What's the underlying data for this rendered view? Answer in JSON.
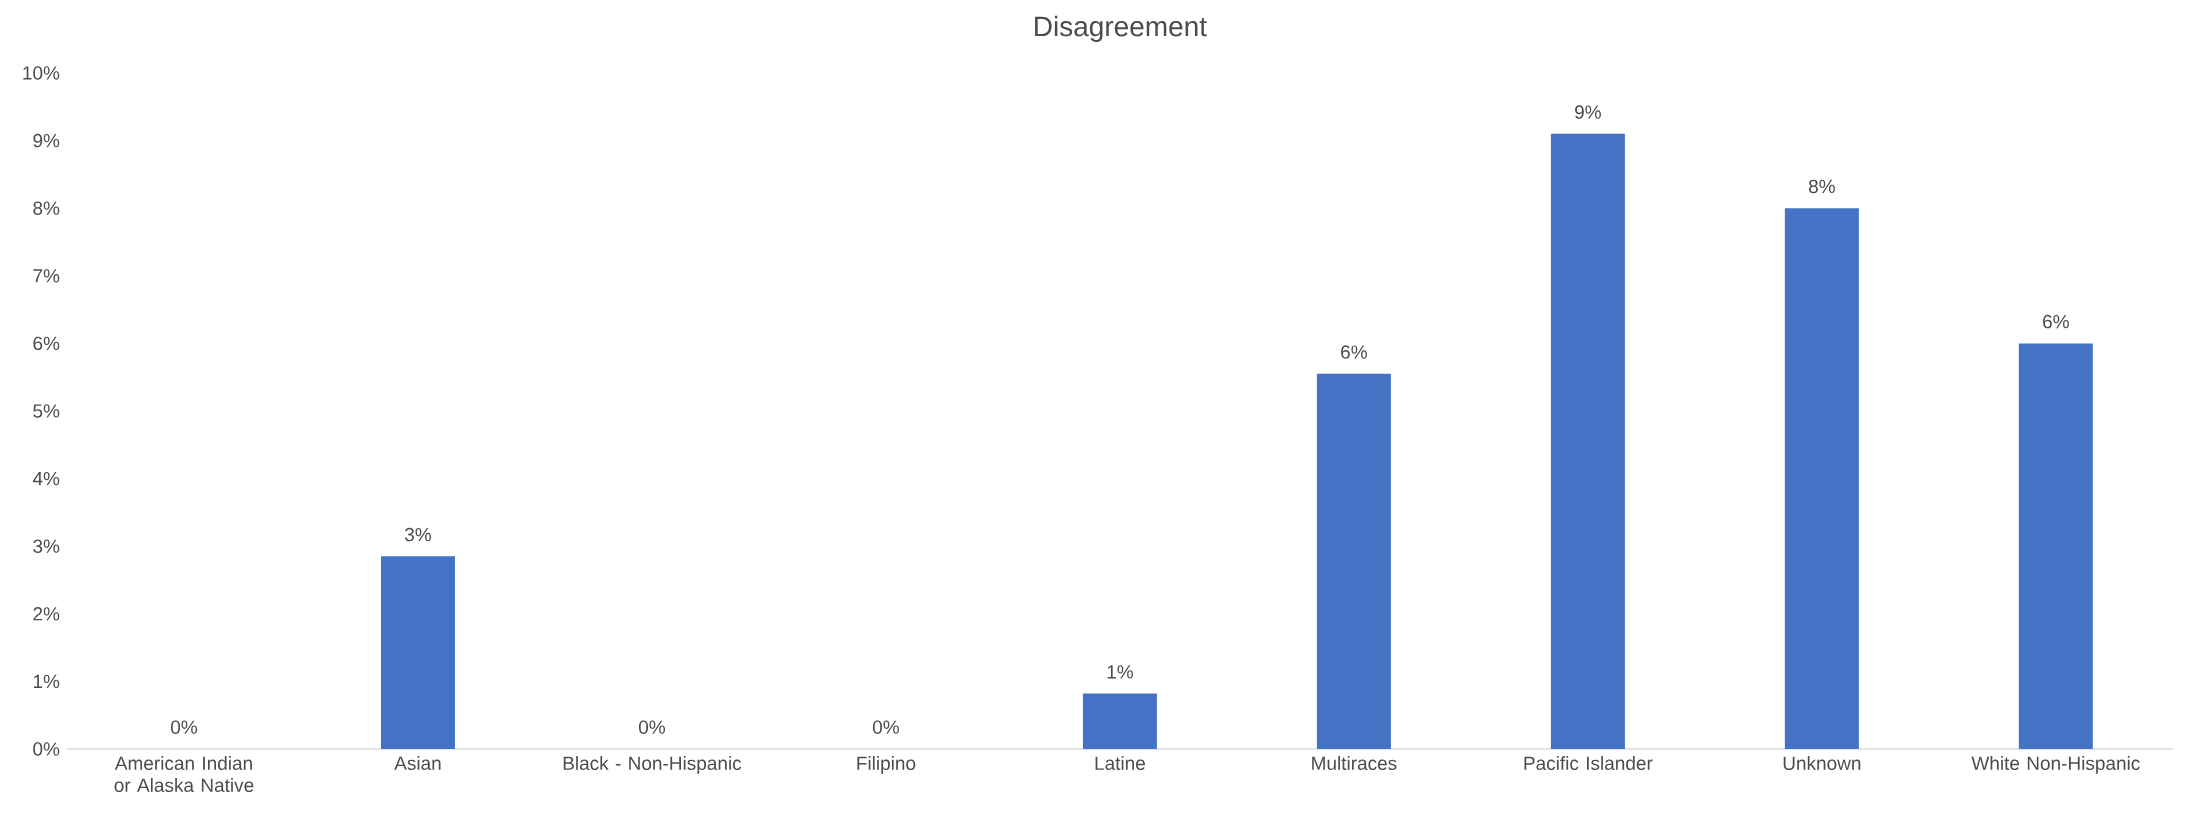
{
  "chart_data": {
    "type": "bar",
    "title": "Disagreement",
    "categories": [
      "American Indian or Alaska Native",
      "Asian",
      "Black - Non-Hispanic",
      "Filipino",
      "Latine",
      "Multiraces",
      "Pacific Islander",
      "Unknown",
      "White Non-Hispanic"
    ],
    "values": [
      0,
      2.85,
      0,
      0,
      0.82,
      5.55,
      9.1,
      8.0,
      6.0
    ],
    "value_labels": [
      "0%",
      "3%",
      "0%",
      "0%",
      "1%",
      "6%",
      "9%",
      "8%",
      "6%"
    ],
    "color": "#4472c4",
    "ylim": [
      0,
      10
    ],
    "yticks": [
      {
        "value": 0,
        "label": "0%"
      },
      {
        "value": 1,
        "label": "1%"
      },
      {
        "value": 2,
        "label": "2%"
      },
      {
        "value": 3,
        "label": "3%"
      },
      {
        "value": 4,
        "label": "4%"
      },
      {
        "value": 5,
        "label": "5%"
      },
      {
        "value": 6,
        "label": "6%"
      },
      {
        "value": 7,
        "label": "7%"
      },
      {
        "value": 8,
        "label": "8%"
      },
      {
        "value": 9,
        "label": "9%"
      },
      {
        "value": 10,
        "label": "10%"
      }
    ]
  }
}
